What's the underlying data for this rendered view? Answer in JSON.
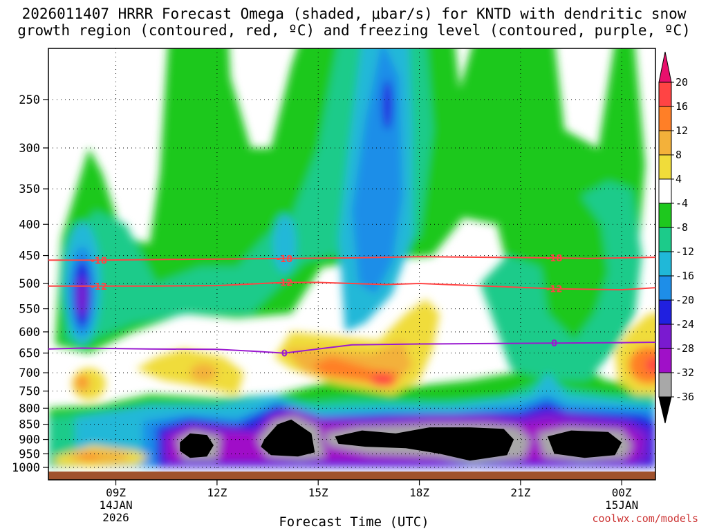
{
  "title_line1": "2026011407 HRRR Forecast Omega (shaded, μbar/s) for KNTD with dendritic snow",
  "title_line2": "growth region (contoured, red, ºC) and freezing level (contoured, purple, ºC)",
  "xlabel": "Forecast Time (UTC)",
  "credit": "coolwx.com/models",
  "chart_data": {
    "type": "heatmap",
    "y_axis": {
      "scale": "pressure",
      "ticks": [
        250,
        300,
        350,
        400,
        450,
        500,
        550,
        600,
        650,
        700,
        750,
        800,
        850,
        900,
        950,
        1000
      ],
      "range": [
        1020,
        200
      ]
    },
    "x_axis": {
      "range_hours": [
        7,
        25
      ],
      "ticks": [
        {
          "hour": 9,
          "label": "09Z",
          "sub1": "14JAN",
          "sub2": "2026"
        },
        {
          "hour": 12,
          "label": "12Z",
          "sub1": "",
          "sub2": ""
        },
        {
          "hour": 15,
          "label": "15Z",
          "sub1": "",
          "sub2": ""
        },
        {
          "hour": 18,
          "label": "18Z",
          "sub1": "",
          "sub2": ""
        },
        {
          "hour": 21,
          "label": "21Z",
          "sub1": "",
          "sub2": ""
        },
        {
          "hour": 24,
          "label": "00Z",
          "sub1": "15JAN",
          "sub2": ""
        }
      ]
    },
    "colorbar": {
      "labels": [
        "20",
        "16",
        "12",
        "8",
        "4",
        "-4",
        "-8",
        "-12",
        "-16",
        "-20",
        "-24",
        "-28",
        "-32",
        "-36"
      ],
      "colors": [
        "#e8106c",
        "#ff4444",
        "#ff7f27",
        "#f3b13a",
        "#f0dc3a",
        "#ffffff",
        "#1ec81e",
        "#1ccb8a",
        "#20b8d8",
        "#1e8ee8",
        "#2020e0",
        "#7a1ad0",
        "#a010c8",
        "#a8a8a8",
        "#000000"
      ]
    },
    "omega_centers": [
      {
        "hour": 8.0,
        "p": 520,
        "value": -32
      },
      {
        "hour": 11.1,
        "p": 920,
        "value": -40
      },
      {
        "hour": 14.0,
        "p": 870,
        "value": -40
      },
      {
        "hour": 17.0,
        "p": 255,
        "value": -22
      },
      {
        "hour": 19.0,
        "p": 920,
        "value": -40
      },
      {
        "hour": 16.5,
        "p": 700,
        "value": 16
      },
      {
        "hour": 24.5,
        "p": 680,
        "value": 14
      },
      {
        "hour": 8.2,
        "p": 950,
        "value": 10
      },
      {
        "hour": 8.0,
        "p": 720,
        "value": 8
      }
    ],
    "contours": [
      {
        "label": "-18",
        "color": "#ff4444",
        "hours": [
          7,
          8.5,
          10,
          12,
          14,
          16,
          18,
          20,
          22,
          23,
          25
        ],
        "p": [
          458,
          458,
          457,
          456,
          455,
          454,
          452,
          453,
          454,
          455,
          453
        ]
      },
      {
        "label": "-12",
        "color": "#ff4444",
        "hours": [
          7,
          8.5,
          10,
          12,
          14,
          15,
          17,
          18,
          20,
          22,
          24,
          25
        ],
        "p": [
          505,
          505,
          505,
          504,
          498,
          498,
          502,
          500,
          505,
          510,
          512,
          508
        ]
      },
      {
        "label": "0",
        "color": "#9a1ad0",
        "hours": [
          7,
          8,
          10,
          12,
          13,
          14,
          16,
          18,
          20,
          22,
          24,
          25
        ],
        "p": [
          640,
          638,
          640,
          641,
          645,
          650,
          630,
          628,
          627,
          626,
          625,
          624
        ]
      }
    ]
  }
}
